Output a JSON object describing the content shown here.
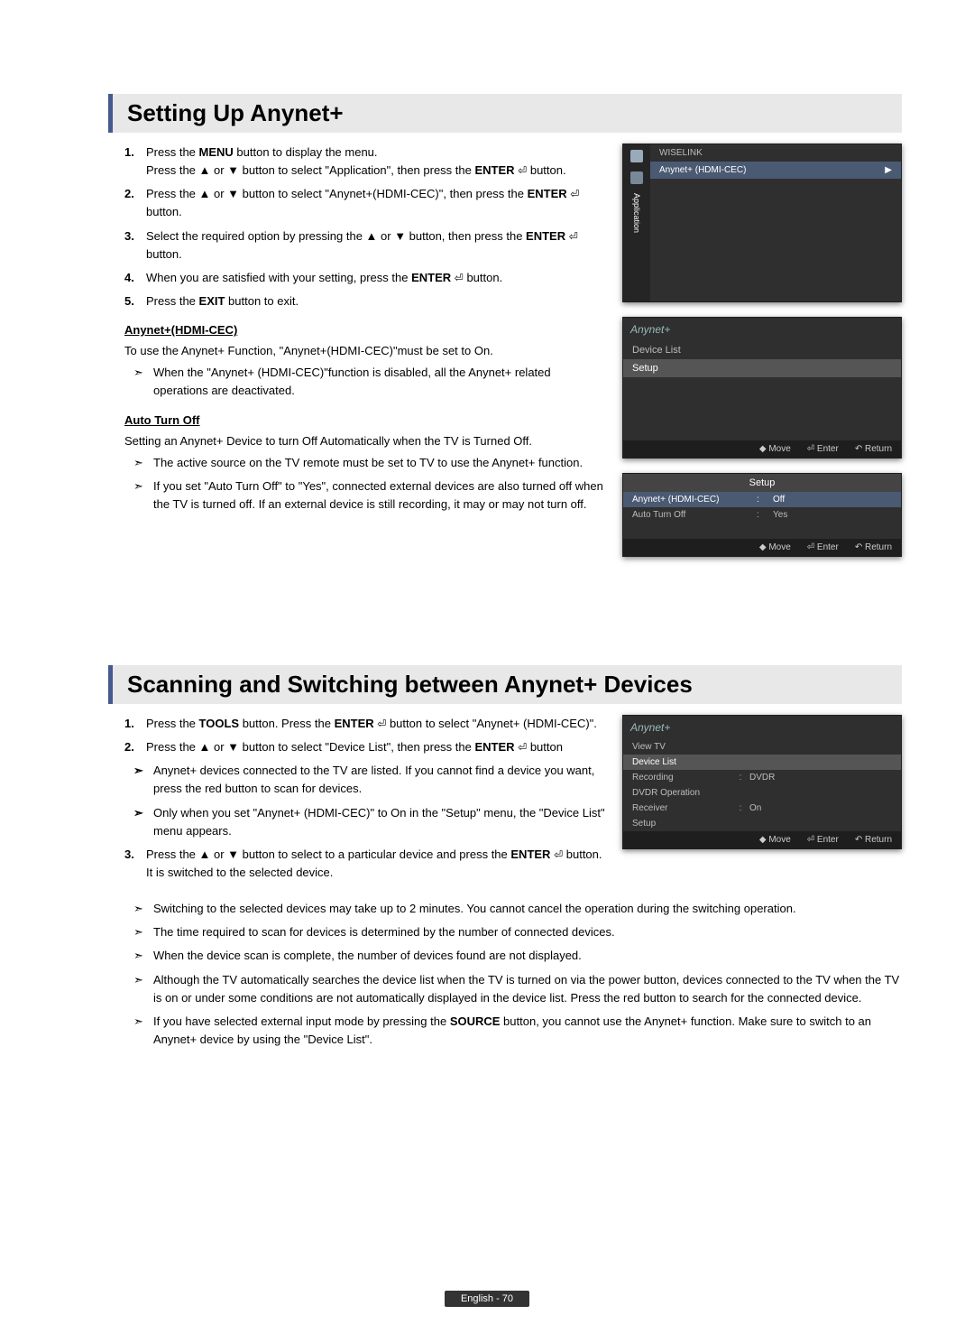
{
  "section1": {
    "title": "Setting Up Anynet+",
    "steps": [
      {
        "num": "1.",
        "html": "Press the <b>MENU</b> button to display the menu.<br>Press the ▲ or ▼ button to select \"Application\", then press the <b>ENTER</b> <span class='enter-icon'>⏎</span> button."
      },
      {
        "num": "2.",
        "html": "Press the ▲ or ▼ button to select \"Anynet+(HDMI-CEC)\", then press the <b>ENTER</b> <span class='enter-icon'>⏎</span> button."
      },
      {
        "num": "3.",
        "html": "Select the required option by pressing the ▲ or ▼ button, then press the <b>ENTER</b> <span class='enter-icon'>⏎</span> button."
      },
      {
        "num": "4.",
        "html": "When you are satisfied with your setting, press the <b>ENTER</b> <span class='enter-icon'>⏎</span> button."
      },
      {
        "num": "5.",
        "html": "Press the <b>EXIT</b> button to exit."
      }
    ],
    "sub1_head": "Anynet+(HDMI-CEC)",
    "sub1_para": "To use the Anynet+ Function, \"Anynet+(HDMI-CEC)\"must be set to On.",
    "sub1_note": "When the \"Anynet+ (HDMI-CEC)\"function is disabled, all the Anynet+ related operations are deactivated.",
    "sub2_head": "Auto Turn Off",
    "sub2_para": "Setting an Anynet+ Device to turn Off Automatically when the TV is Turned Off.",
    "sub2_notes": [
      "The active source on the TV remote must be set to TV to use the Anynet+ function.",
      "If you set \"Auto Turn Off\" to \"Yes\", connected external devices are also turned off when the TV is turned off. If an external device is still recording, it may or may not turn off."
    ]
  },
  "section2": {
    "title": "Scanning and Switching between Anynet+ Devices",
    "steps": [
      {
        "num": "1.",
        "html": "Press the <b>TOOLS</b> button. Press the <b>ENTER</b> <span class='enter-icon'>⏎</span> button to select \"Anynet+ (HDMI-CEC)\"."
      },
      {
        "num": "2.",
        "html": "Press the ▲ or ▼ button to select \"Device List\", then press the <b>ENTER</b> <span class='enter-icon'>⏎</span> button"
      },
      {
        "num": "",
        "sub": true,
        "html": "Anynet+ devices connected to the TV are listed. If you cannot find a device you want, press the red button to scan for devices."
      },
      {
        "num": "",
        "sub": true,
        "html": "Only when you set \"Anynet+ (HDMI-CEC)\" to On in the \"Setup\" menu, the \"Device List\" menu appears."
      },
      {
        "num": "3.",
        "html": "Press the ▲ or ▼ button to select to a particular device and press the <b>ENTER</b> <span class='enter-icon'>⏎</span> button. It is switched to the selected device."
      }
    ],
    "notes": [
      "Switching to the selected devices may take up to 2 minutes. You cannot cancel the operation during the switching operation.",
      "The time required to scan for devices is determined by the number of connected devices.",
      "When the device scan is complete, the number of devices found are not displayed.",
      "Although the TV automatically searches the device list when the TV is turned on via the power button, devices connected to the TV when the TV is on or under some conditions are not automatically displayed in the device list. Press the red button to search for the connected device.",
      "If you have selected external input mode by pressing the <b>SOURCE</b> button, you cannot use the Anynet+ function. Make sure to switch to an Anynet+ device by using the \"Device List\"."
    ]
  },
  "panel_app": {
    "sidebar_label": "Application",
    "row1": "WISELINK",
    "row2": "Anynet+ (HDMI-CEC)",
    "arrow": "▶"
  },
  "panel_list": {
    "brand": "Anynet+",
    "items": [
      "Device List",
      "Setup"
    ],
    "footer": {
      "move": "◆ Move",
      "enter": "⏎ Enter",
      "ret": "↶ Return"
    }
  },
  "panel_setup": {
    "title": "Setup",
    "rows": [
      {
        "k": "Anynet+ (HDMI-CEC)",
        "v": "Off",
        "hl": true
      },
      {
        "k": "Auto Turn Off",
        "v": "Yes",
        "hl": false
      }
    ],
    "footer": {
      "move": "◆ Move",
      "enter": "⏎ Enter",
      "ret": "↶ Return"
    }
  },
  "panel_dev": {
    "brand": "Anynet+",
    "rows": [
      {
        "k": "View TV",
        "v": "",
        "hl": false
      },
      {
        "k": "Device List",
        "v": "",
        "hl": true
      },
      {
        "k": "Recording",
        "sep": ":",
        "v": "DVDR",
        "hl": false
      },
      {
        "k": "DVDR Operation",
        "v": "",
        "hl": false
      },
      {
        "k": "Receiver",
        "sep": ":",
        "v": "On",
        "hl": false
      },
      {
        "k": "Setup",
        "v": "",
        "hl": false
      }
    ],
    "footer": {
      "move": "◆ Move",
      "enter": "⏎ Enter",
      "ret": "↶ Return"
    }
  },
  "footer": {
    "text": "English - 70"
  }
}
